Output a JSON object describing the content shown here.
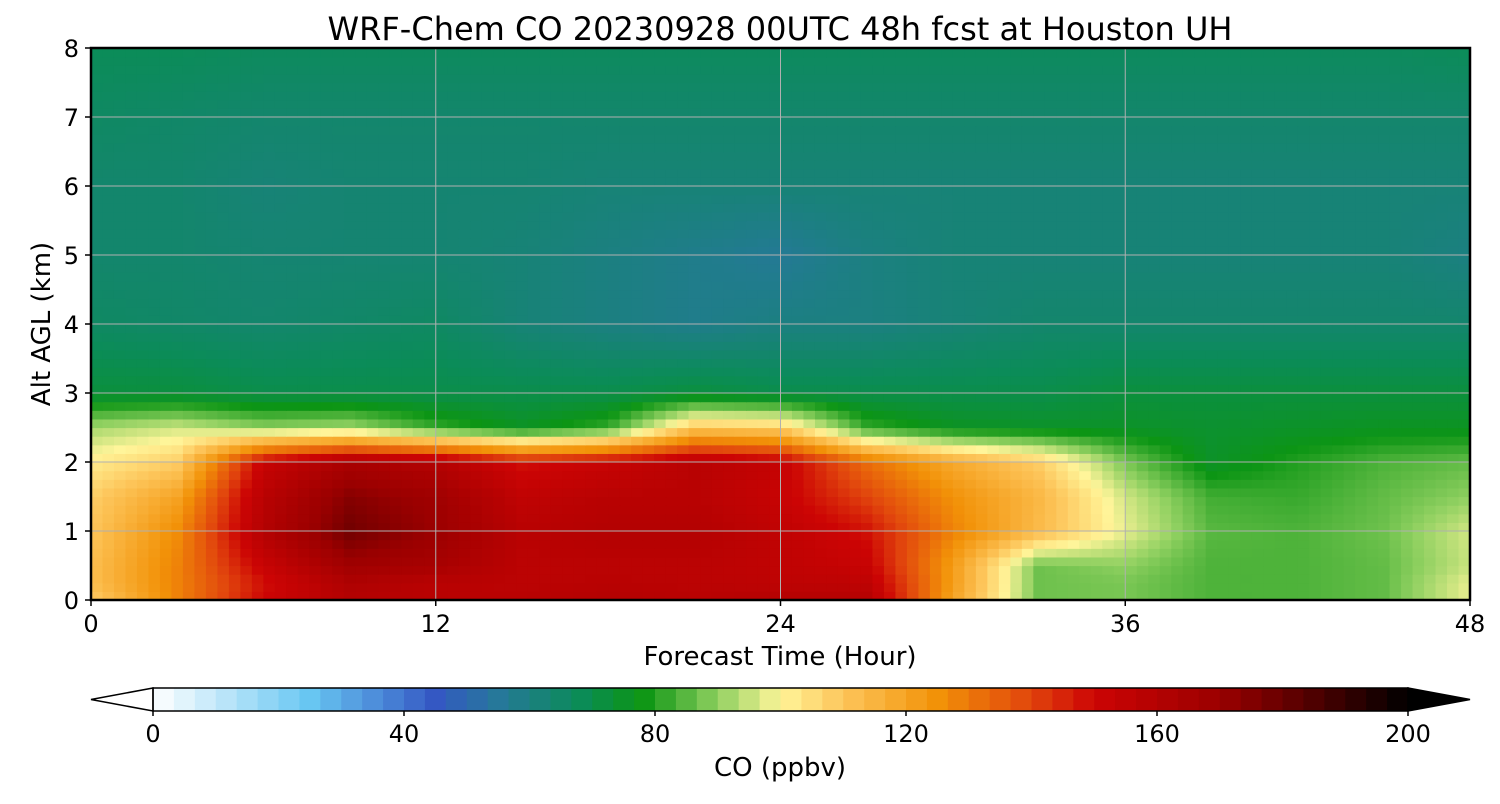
{
  "chart_data": {
    "type": "heatmap",
    "title": "WRF-Chem CO  20230928 00UTC 48h fcst at Houston UH",
    "xlabel": "Forecast Time (Hour)",
    "ylabel": "Alt AGL (km)",
    "xlim": [
      0,
      48
    ],
    "ylim": [
      0,
      8
    ],
    "xticks": [
      0,
      12,
      24,
      36,
      48
    ],
    "yticks": [
      0,
      1,
      2,
      3,
      4,
      5,
      6,
      7,
      8
    ],
    "grid": true,
    "x": [
      0,
      3,
      6,
      9,
      12,
      15,
      18,
      21,
      24,
      27,
      30,
      33,
      36,
      39,
      42,
      45,
      48
    ],
    "y": [
      0,
      0.25,
      0.5,
      1.0,
      1.5,
      2.0,
      2.5,
      3.0,
      4.0,
      5.0,
      6.0,
      7.0,
      8.0
    ],
    "z": [
      [
        108,
        128,
        150,
        160,
        158,
        158,
        160,
        158,
        160,
        160,
        120,
        87,
        88,
        84,
        84,
        86,
        98
      ],
      [
        112,
        128,
        148,
        162,
        158,
        157,
        158,
        157,
        156,
        156,
        122,
        87,
        88,
        84,
        84,
        86,
        98
      ],
      [
        112,
        128,
        152,
        168,
        165,
        157,
        157,
        157,
        155,
        152,
        122,
        87,
        90,
        84,
        84,
        86,
        95
      ],
      [
        110,
        126,
        160,
        178,
        170,
        158,
        160,
        160,
        155,
        148,
        128,
        113,
        98,
        85,
        84,
        87,
        96
      ],
      [
        108,
        120,
        158,
        174,
        168,
        155,
        158,
        158,
        152,
        140,
        125,
        114,
        96,
        83,
        82,
        86,
        90
      ],
      [
        102,
        108,
        152,
        164,
        160,
        148,
        152,
        158,
        153,
        132,
        118,
        108,
        88,
        75,
        80,
        84,
        86
      ],
      [
        92,
        96,
        90,
        92,
        82,
        76,
        82,
        110,
        108,
        82,
        76,
        75,
        75,
        74,
        75,
        76,
        76
      ],
      [
        72,
        72,
        70,
        70,
        70,
        70,
        70,
        72,
        70,
        70,
        70,
        70,
        72,
        72,
        72,
        72,
        72
      ],
      [
        66,
        65,
        64,
        65,
        66,
        62,
        60,
        58,
        60,
        60,
        62,
        64,
        64,
        64,
        64,
        64,
        64
      ],
      [
        64,
        64,
        63,
        63,
        63,
        62,
        60,
        58,
        56,
        60,
        62,
        62,
        62,
        62,
        62,
        62,
        60
      ],
      [
        64,
        64,
        62,
        63,
        63,
        63,
        62,
        62,
        62,
        62,
        62,
        62,
        62,
        62,
        62,
        62,
        62
      ],
      [
        66,
        65,
        64,
        64,
        64,
        64,
        64,
        64,
        64,
        64,
        64,
        64,
        64,
        64,
        64,
        64,
        64
      ],
      [
        68,
        68,
        67,
        67,
        67,
        67,
        67,
        67,
        67,
        67,
        67,
        67,
        67,
        67,
        67,
        67,
        68
      ]
    ],
    "colorbar": {
      "label": "CO  (ppbv)",
      "min": 0,
      "max": 200,
      "ticks": [
        0,
        40,
        80,
        120,
        160,
        200
      ],
      "extend": "both",
      "colors": [
        {
          "v": 0,
          "c": "#ffffff"
        },
        {
          "v": 25,
          "c": "#68c6f2"
        },
        {
          "v": 45,
          "c": "#3458c3"
        },
        {
          "v": 55,
          "c": "#26789a"
        },
        {
          "v": 68,
          "c": "#0b8c58"
        },
        {
          "v": 78,
          "c": "#0c9514"
        },
        {
          "v": 90,
          "c": "#8fd060"
        },
        {
          "v": 100,
          "c": "#fff59a"
        },
        {
          "v": 110,
          "c": "#fdc55a"
        },
        {
          "v": 125,
          "c": "#f29208"
        },
        {
          "v": 140,
          "c": "#e1440d"
        },
        {
          "v": 150,
          "c": "#cc0404"
        },
        {
          "v": 170,
          "c": "#9b0000"
        },
        {
          "v": 200,
          "c": "#000000"
        }
      ]
    }
  }
}
